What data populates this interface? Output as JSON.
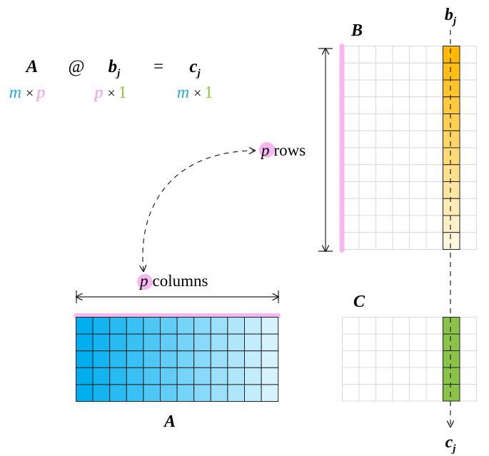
{
  "equation": {
    "lhs_matrix": "A",
    "operator": "@",
    "vector": "b",
    "vector_sub": "j",
    "equals": "=",
    "result": "c",
    "result_sub": "j"
  },
  "dims": {
    "a_rows": "m",
    "a_cols": "p",
    "b_rows": "p",
    "b_cols": "1",
    "c_rows": "m",
    "c_cols": "1",
    "times": "×"
  },
  "labels": {
    "matrix_b": "B",
    "matrix_c": "C",
    "matrix_a": "A",
    "col_top": "b",
    "col_top_sub": "j",
    "col_bottom": "c",
    "col_bottom_sub": "j",
    "p_rows_var": "p",
    "p_rows_text": "rows",
    "p_cols_var": "p",
    "p_cols_text": "columns"
  },
  "grids": {
    "A": {
      "rows": 5,
      "cols": 12
    },
    "B": {
      "rows": 12,
      "cols": 8,
      "highlight_col": 6
    },
    "C": {
      "rows": 5,
      "cols": 8,
      "highlight_col": 6
    }
  },
  "colors": {
    "m_color": "#29abe2",
    "p_color": "#f19cf1",
    "one_color": "#8cc63f",
    "pink_bar": "#f7b8f2",
    "grid_light": "#d9d9d9",
    "grid_dark": "#222222",
    "a_left": "#00aeef",
    "a_right": "#d6f3fd",
    "b_col_top": "#ffb900",
    "b_col_bottom": "#fff6de",
    "c_col": "#8bc34a"
  }
}
